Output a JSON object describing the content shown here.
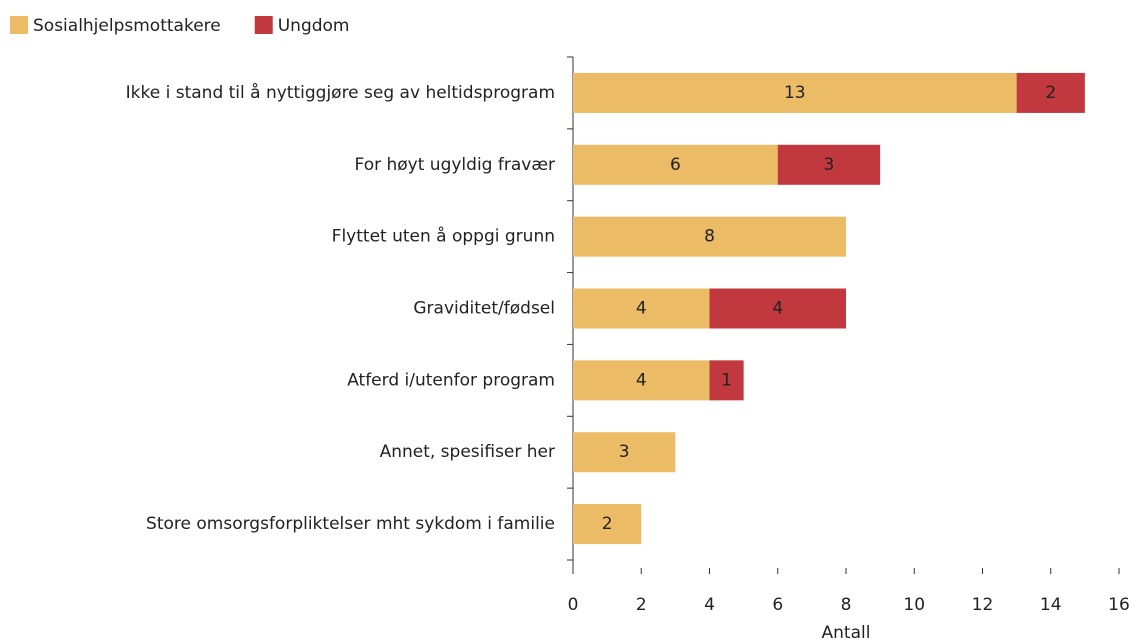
{
  "chart_data": {
    "type": "stacked_barh",
    "categories": [
      "Ikke i stand til å nyttiggjøre seg av heltidsprogram",
      "For høyt ugyldig fravær",
      "Flyttet uten å oppgi grunn",
      "Graviditet/fødsel",
      "Atferd i/utenfor program",
      "Annet, spesifiser her",
      "Store omsorgsforpliktelser mht sykdom i familie"
    ],
    "series": [
      {
        "name": "Sosialhjelpsmottakere",
        "color": "#ebbb66",
        "values": [
          13,
          6,
          8,
          4,
          4,
          3,
          2
        ]
      },
      {
        "name": "Ungdom",
        "color": "#c1383e",
        "values": [
          2,
          3,
          null,
          4,
          1,
          null,
          null
        ]
      }
    ],
    "xlabel": "Antall",
    "xlim": [
      0,
      16
    ],
    "xticks": [
      0,
      2,
      4,
      6,
      8,
      10,
      12,
      14,
      16
    ],
    "legend": "top-left"
  }
}
